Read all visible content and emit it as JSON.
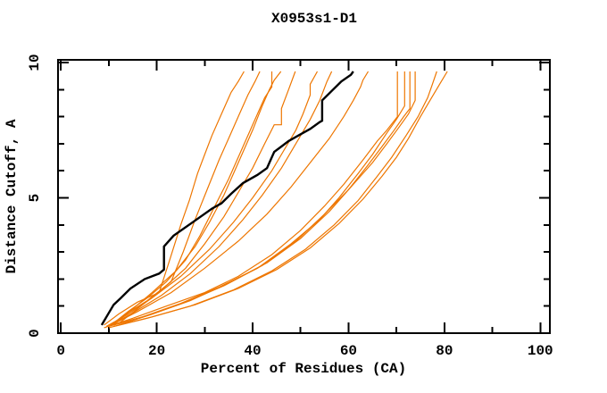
{
  "window": {
    "background": "#ffffff"
  },
  "chart_data": {
    "type": "line",
    "title": "X0953s1-D1",
    "xlabel": "Percent of Residues (CA)",
    "ylabel": "Distance Cutoff, A",
    "xlim": [
      -0.6,
      102.0
    ],
    "ylim": [
      0,
      10.1
    ],
    "x_ticks_major": [
      0,
      20,
      40,
      60,
      80,
      100
    ],
    "x_ticks_minor": [
      10,
      30,
      50,
      70,
      90
    ],
    "y_ticks_major": [
      0,
      5,
      10
    ],
    "y_ticks_minor": [
      1,
      2,
      3,
      4,
      6,
      7,
      8,
      9
    ],
    "x_tick_labels": [
      "0",
      "20",
      "40",
      "60",
      "80",
      "100"
    ],
    "y_tick_labels": [
      "0",
      "5",
      "10"
    ],
    "grid": false,
    "legend": "none",
    "colors": {
      "target": "#000000",
      "template": "#EE7600",
      "axis": "#000000",
      "text": "#000000"
    },
    "series": [
      {
        "name": "target-black",
        "color": "#000000",
        "width": 2.4,
        "points": [
          [
            8.5,
            0.3
          ],
          [
            10,
            0.75
          ],
          [
            11,
            1.05
          ],
          [
            12.5,
            1.3
          ],
          [
            14.5,
            1.65
          ],
          [
            17.5,
            2.0
          ],
          [
            20.5,
            2.2
          ],
          [
            21.5,
            2.35
          ],
          [
            21.5,
            3.2
          ],
          [
            23.5,
            3.6
          ],
          [
            27.5,
            4.1
          ],
          [
            31.5,
            4.6
          ],
          [
            33.5,
            4.8
          ],
          [
            35.5,
            5.15
          ],
          [
            38,
            5.55
          ],
          [
            41,
            5.85
          ],
          [
            43,
            6.1
          ],
          [
            43.5,
            6.3
          ],
          [
            44.5,
            6.7
          ],
          [
            46,
            6.9
          ],
          [
            47.5,
            7.1
          ],
          [
            49.5,
            7.3
          ],
          [
            52,
            7.55
          ],
          [
            54,
            7.8
          ],
          [
            54.5,
            7.85
          ],
          [
            54.5,
            8.6
          ],
          [
            56.5,
            8.95
          ],
          [
            58.5,
            9.3
          ],
          [
            60.5,
            9.55
          ],
          [
            61,
            9.67
          ]
        ]
      },
      {
        "name": "template-1",
        "color": "#EE7600",
        "width": 1.2,
        "points": [
          [
            9,
            0.3
          ],
          [
            12,
            0.7
          ],
          [
            16,
            1.15
          ],
          [
            20.5,
            1.5
          ],
          [
            22.5,
            2.6
          ],
          [
            25,
            4.0
          ],
          [
            26.8,
            4.9
          ],
          [
            28.5,
            5.9
          ],
          [
            30,
            6.6
          ],
          [
            31.5,
            7.3
          ],
          [
            33.5,
            8.1
          ],
          [
            35.5,
            8.9
          ],
          [
            37,
            9.3
          ],
          [
            38.2,
            9.67
          ]
        ]
      },
      {
        "name": "template-2",
        "color": "#EE7600",
        "width": 1.2,
        "points": [
          [
            10,
            0.25
          ],
          [
            13.5,
            0.7
          ],
          [
            18,
            1.2
          ],
          [
            23,
            1.9
          ],
          [
            25.5,
            3.0
          ],
          [
            28,
            4.2
          ],
          [
            30.5,
            5.3
          ],
          [
            33,
            6.4
          ],
          [
            35,
            7.2
          ],
          [
            37,
            8.0
          ],
          [
            39,
            8.8
          ],
          [
            40.5,
            9.3
          ],
          [
            41.5,
            9.67
          ]
        ]
      },
      {
        "name": "template-3",
        "color": "#EE7600",
        "width": 1.2,
        "points": [
          [
            10.5,
            0.3
          ],
          [
            14,
            0.8
          ],
          [
            18,
            1.3
          ],
          [
            22,
            1.9
          ],
          [
            26,
            2.7
          ],
          [
            29,
            3.6
          ],
          [
            31,
            4.3
          ],
          [
            33,
            5.0
          ],
          [
            35,
            5.7
          ],
          [
            37,
            6.5
          ],
          [
            39,
            7.3
          ],
          [
            41,
            8.1
          ],
          [
            42.5,
            8.7
          ],
          [
            44,
            9.1
          ],
          [
            44,
            9.67
          ]
        ]
      },
      {
        "name": "template-4",
        "color": "#EE7600",
        "width": 1.2,
        "points": [
          [
            11,
            0.3
          ],
          [
            15,
            0.9
          ],
          [
            19,
            1.5
          ],
          [
            24,
            2.3
          ],
          [
            28,
            3.2
          ],
          [
            31,
            4.1
          ],
          [
            34,
            5.1
          ],
          [
            36,
            5.9
          ],
          [
            38,
            6.7
          ],
          [
            40,
            7.5
          ],
          [
            42,
            8.4
          ],
          [
            43.5,
            9.0
          ],
          [
            44.5,
            9.35
          ],
          [
            45.9,
            9.67
          ]
        ]
      },
      {
        "name": "template-5",
        "color": "#EE7600",
        "width": 1.2,
        "points": [
          [
            12,
            0.35
          ],
          [
            16,
            0.9
          ],
          [
            21,
            1.6
          ],
          [
            26,
            2.4
          ],
          [
            30,
            3.3
          ],
          [
            34,
            4.3
          ],
          [
            37,
            5.2
          ],
          [
            40,
            6.1
          ],
          [
            42.5,
            7.0
          ],
          [
            44.5,
            7.7
          ],
          [
            46,
            7.7
          ],
          [
            46,
            8.3
          ],
          [
            47.5,
            9.0
          ],
          [
            48.9,
            9.67
          ]
        ]
      },
      {
        "name": "template-6",
        "color": "#EE7600",
        "width": 1.2,
        "points": [
          [
            9.5,
            0.25
          ],
          [
            14,
            0.7
          ],
          [
            19,
            1.3
          ],
          [
            25,
            2.1
          ],
          [
            31,
            3.1
          ],
          [
            36,
            4.1
          ],
          [
            40,
            5.0
          ],
          [
            44,
            6.0
          ],
          [
            47,
            6.9
          ],
          [
            49,
            7.5
          ],
          [
            50.5,
            8.1
          ],
          [
            52,
            8.8
          ],
          [
            52,
            9.2
          ],
          [
            53.5,
            9.67
          ]
        ]
      },
      {
        "name": "template-7",
        "color": "#EE7600",
        "width": 1.2,
        "points": [
          [
            10,
            0.25
          ],
          [
            15,
            0.75
          ],
          [
            21,
            1.4
          ],
          [
            27,
            2.2
          ],
          [
            33,
            3.2
          ],
          [
            38,
            4.2
          ],
          [
            42,
            5.1
          ],
          [
            46,
            6.1
          ],
          [
            49,
            7.0
          ],
          [
            52,
            7.9
          ],
          [
            54,
            8.6
          ],
          [
            55.5,
            9.3
          ],
          [
            56.5,
            9.67
          ]
        ]
      },
      {
        "name": "template-8",
        "color": "#EE7600",
        "width": 1.2,
        "points": [
          [
            10.5,
            0.3
          ],
          [
            16,
            0.8
          ],
          [
            23,
            1.5
          ],
          [
            30,
            2.4
          ],
          [
            37,
            3.4
          ],
          [
            43,
            4.4
          ],
          [
            48,
            5.4
          ],
          [
            52,
            6.3
          ],
          [
            56,
            7.2
          ],
          [
            59,
            8.0
          ],
          [
            61,
            8.6
          ],
          [
            62.5,
            9.1
          ],
          [
            63,
            9.35
          ],
          [
            64.1,
            9.67
          ]
        ]
      },
      {
        "name": "template-9",
        "color": "#EE7600",
        "width": 1.2,
        "points": [
          [
            9,
            0.2
          ],
          [
            15,
            0.55
          ],
          [
            22,
            1.0
          ],
          [
            30,
            1.5
          ],
          [
            37,
            2.1
          ],
          [
            44,
            2.9
          ],
          [
            50,
            3.8
          ],
          [
            55,
            4.7
          ],
          [
            59,
            5.5
          ],
          [
            63,
            6.4
          ],
          [
            66,
            7.1
          ],
          [
            68,
            7.5
          ],
          [
            70.2,
            8.0
          ],
          [
            70.2,
            9.67
          ]
        ]
      },
      {
        "name": "template-10",
        "color": "#EE7600",
        "width": 1.2,
        "points": [
          [
            10,
            0.25
          ],
          [
            17,
            0.6
          ],
          [
            25,
            1.1
          ],
          [
            33,
            1.7
          ],
          [
            41,
            2.4
          ],
          [
            48,
            3.3
          ],
          [
            54,
            4.2
          ],
          [
            58,
            5.0
          ],
          [
            62,
            5.9
          ],
          [
            65,
            6.6
          ],
          [
            68,
            7.4
          ],
          [
            70,
            7.9
          ],
          [
            71.7,
            8.4
          ],
          [
            71.7,
            9.67
          ]
        ]
      },
      {
        "name": "template-11",
        "color": "#EE7600",
        "width": 1.2,
        "points": [
          [
            11,
            0.3
          ],
          [
            18,
            0.65
          ],
          [
            26,
            1.15
          ],
          [
            34,
            1.75
          ],
          [
            42,
            2.5
          ],
          [
            49,
            3.4
          ],
          [
            55,
            4.4
          ],
          [
            60,
            5.3
          ],
          [
            64,
            6.2
          ],
          [
            67,
            6.9
          ],
          [
            69.5,
            7.5
          ],
          [
            71.5,
            8.0
          ],
          [
            72.8,
            8.3
          ],
          [
            72.8,
            9.67
          ]
        ]
      },
      {
        "name": "template-12",
        "color": "#EE7600",
        "width": 1.2,
        "points": [
          [
            12,
            0.3
          ],
          [
            19,
            0.7
          ],
          [
            27,
            1.2
          ],
          [
            35,
            1.85
          ],
          [
            43,
            2.6
          ],
          [
            50,
            3.5
          ],
          [
            56,
            4.5
          ],
          [
            61,
            5.5
          ],
          [
            65,
            6.3
          ],
          [
            68,
            7.0
          ],
          [
            70.5,
            7.6
          ],
          [
            72.5,
            8.1
          ],
          [
            73.9,
            8.6
          ],
          [
            73.9,
            9.67
          ]
        ]
      },
      {
        "name": "template-13",
        "color": "#EE7600",
        "width": 1.2,
        "points": [
          [
            10,
            0.2
          ],
          [
            18,
            0.55
          ],
          [
            27,
            1.0
          ],
          [
            36,
            1.6
          ],
          [
            44,
            2.3
          ],
          [
            51,
            3.1
          ],
          [
            57,
            4.0
          ],
          [
            62,
            4.9
          ],
          [
            66,
            5.8
          ],
          [
            69,
            6.5
          ],
          [
            72,
            7.3
          ],
          [
            74.5,
            8.0
          ],
          [
            76.5,
            8.7
          ],
          [
            77.5,
            9.2
          ],
          [
            78.4,
            9.67
          ]
        ]
      },
      {
        "name": "template-14",
        "color": "#EE7600",
        "width": 1.2,
        "points": [
          [
            11,
            0.25
          ],
          [
            19,
            0.6
          ],
          [
            28,
            1.05
          ],
          [
            37,
            1.65
          ],
          [
            45,
            2.35
          ],
          [
            52,
            3.15
          ],
          [
            58,
            4.05
          ],
          [
            63,
            4.95
          ],
          [
            67,
            5.8
          ],
          [
            70,
            6.5
          ],
          [
            72.5,
            7.2
          ],
          [
            75,
            8.0
          ],
          [
            77,
            8.6
          ],
          [
            79,
            9.2
          ],
          [
            80.6,
            9.67
          ]
        ]
      }
    ]
  }
}
